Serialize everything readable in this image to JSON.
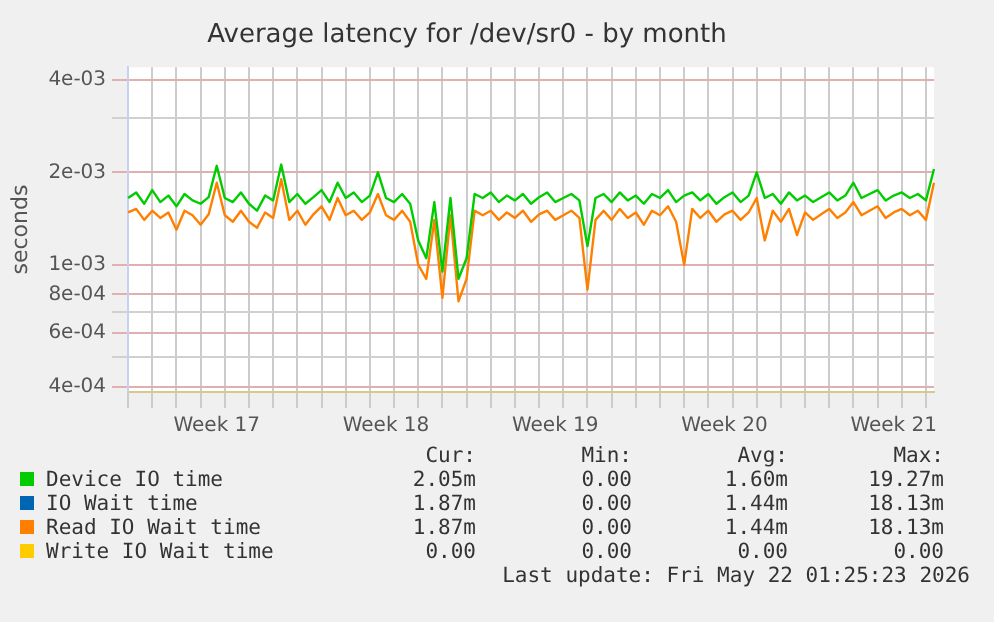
{
  "chart_data": {
    "type": "line",
    "title": "Average latency for /dev/sr0 - by month",
    "ylabel": "seconds",
    "log": "y",
    "grid": true,
    "legend": "bottom",
    "marker": "none",
    "line_style": "solid",
    "ylim": [
      0.000385,
      0.0044
    ],
    "yticks": [
      {
        "value": 0.0004,
        "label": "4e-04"
      },
      {
        "value": 0.0005,
        "label": null
      },
      {
        "value": 0.0006,
        "label": "6e-04"
      },
      {
        "value": 0.0007,
        "label": null
      },
      {
        "value": 0.0008,
        "label": "8e-04"
      },
      {
        "value": 0.001,
        "label": "1e-03"
      },
      {
        "value": 0.002,
        "label": "2e-03"
      },
      {
        "value": 0.003,
        "label": null
      },
      {
        "value": 0.004,
        "label": "4e-03"
      }
    ],
    "categories": [
      null,
      null,
      null,
      null,
      null,
      null,
      null,
      null,
      null,
      null,
      null,
      "Week 17",
      null,
      null,
      null,
      null,
      null,
      null,
      null,
      null,
      null,
      null,
      null,
      null,
      null,
      null,
      null,
      null,
      null,
      null,
      null,
      null,
      "Week 18",
      null,
      null,
      null,
      null,
      null,
      null,
      null,
      null,
      null,
      null,
      null,
      null,
      null,
      null,
      null,
      null,
      null,
      null,
      null,
      null,
      "Week 19",
      null,
      null,
      null,
      null,
      null,
      null,
      null,
      null,
      null,
      null,
      null,
      null,
      null,
      null,
      null,
      null,
      null,
      null,
      null,
      null,
      "Week 20",
      null,
      null,
      null,
      null,
      null,
      null,
      null,
      null,
      null,
      null,
      null,
      null,
      null,
      null,
      null,
      null,
      null,
      null,
      null,
      null,
      "Week 21",
      null,
      null,
      null,
      null,
      null
    ],
    "series": [
      {
        "name": "Device IO time",
        "color": "#00cc00",
        "values": [
          0.00165,
          0.00172,
          0.00158,
          0.00175,
          0.0016,
          0.00168,
          0.00155,
          0.0017,
          0.00162,
          0.00158,
          0.00166,
          0.0021,
          0.00165,
          0.0016,
          0.00172,
          0.00158,
          0.0015,
          0.00168,
          0.00162,
          0.00212,
          0.0016,
          0.0017,
          0.00158,
          0.00166,
          0.00175,
          0.0016,
          0.00185,
          0.00165,
          0.00172,
          0.0016,
          0.00168,
          0.002,
          0.00165,
          0.0016,
          0.0017,
          0.00158,
          0.0012,
          0.00105,
          0.0016,
          0.00095,
          0.00165,
          0.0009,
          0.00105,
          0.0017,
          0.00165,
          0.00172,
          0.0016,
          0.00168,
          0.00162,
          0.0017,
          0.00158,
          0.00166,
          0.00172,
          0.0016,
          0.00165,
          0.0017,
          0.00162,
          0.00115,
          0.00165,
          0.0017,
          0.0016,
          0.00172,
          0.00162,
          0.00168,
          0.00158,
          0.0017,
          0.00165,
          0.00175,
          0.0016,
          0.00168,
          0.00172,
          0.00162,
          0.0017,
          0.00158,
          0.00166,
          0.00172,
          0.0016,
          0.00168,
          0.002,
          0.00165,
          0.0017,
          0.00158,
          0.00172,
          0.00162,
          0.00168,
          0.0016,
          0.00166,
          0.00172,
          0.00162,
          0.00168,
          0.00185,
          0.00165,
          0.0017,
          0.00175,
          0.00162,
          0.00168,
          0.00172,
          0.00165,
          0.0017,
          0.00162,
          0.00205
        ]
      },
      {
        "name": "IO Wait time",
        "color": "#0066b3",
        "values": [
          null,
          null,
          null,
          null,
          null,
          null,
          null,
          null,
          null,
          null,
          null,
          null,
          null,
          null,
          null,
          null,
          null,
          null,
          null,
          null,
          null,
          null,
          null,
          null,
          null,
          null,
          null,
          null,
          null,
          null,
          null,
          null,
          null,
          null,
          null,
          null,
          null,
          null,
          null,
          null,
          null,
          null,
          null,
          null,
          null,
          null,
          null,
          null,
          null,
          null,
          null,
          null,
          null,
          null,
          null,
          null,
          null,
          null,
          null,
          null,
          null,
          null,
          null,
          null,
          null,
          null,
          null,
          null,
          null,
          null,
          null,
          null,
          null,
          null,
          null,
          null,
          null,
          null,
          null,
          null,
          null,
          null,
          null,
          null,
          null,
          null,
          null,
          null,
          null,
          null,
          null,
          null,
          null,
          null,
          null,
          null,
          null,
          null,
          null,
          null,
          null
        ]
      },
      {
        "name": "Read IO Wait time",
        "color": "#ff8000",
        "values": [
          0.00148,
          0.00152,
          0.0014,
          0.0015,
          0.00142,
          0.00148,
          0.0013,
          0.0015,
          0.00145,
          0.00135,
          0.00146,
          0.00185,
          0.00145,
          0.00138,
          0.0015,
          0.00138,
          0.00132,
          0.00148,
          0.00142,
          0.0019,
          0.0014,
          0.0015,
          0.00135,
          0.00146,
          0.00155,
          0.0014,
          0.00165,
          0.00145,
          0.0015,
          0.0014,
          0.00148,
          0.0017,
          0.00145,
          0.0014,
          0.0015,
          0.00138,
          0.001,
          0.0009,
          0.0014,
          0.00078,
          0.00145,
          0.00076,
          0.0009,
          0.0015,
          0.00145,
          0.0015,
          0.0014,
          0.00148,
          0.00142,
          0.0015,
          0.00138,
          0.00146,
          0.0015,
          0.0014,
          0.00145,
          0.0015,
          0.00142,
          0.00083,
          0.0014,
          0.0015,
          0.0014,
          0.00152,
          0.00142,
          0.00148,
          0.00135,
          0.0015,
          0.00145,
          0.00155,
          0.00138,
          0.001,
          0.00152,
          0.00142,
          0.0015,
          0.00138,
          0.00146,
          0.0015,
          0.0014,
          0.00148,
          0.00165,
          0.0012,
          0.0015,
          0.00138,
          0.00152,
          0.00125,
          0.00148,
          0.0014,
          0.00146,
          0.00152,
          0.00142,
          0.00148,
          0.0016,
          0.00145,
          0.0015,
          0.00155,
          0.00142,
          0.00148,
          0.00152,
          0.00145,
          0.0015,
          0.0014,
          0.00185
        ]
      },
      {
        "name": "Write IO Wait time",
        "color": "#ffcc00",
        "values": [
          null,
          null,
          null,
          null,
          null,
          null,
          null,
          null,
          null,
          null,
          null,
          null,
          null,
          null,
          null,
          null,
          null,
          null,
          null,
          null,
          null,
          null,
          null,
          null,
          null,
          null,
          null,
          null,
          null,
          null,
          null,
          null,
          null,
          null,
          null,
          null,
          null,
          null,
          null,
          null,
          null,
          null,
          null,
          null,
          null,
          null,
          null,
          null,
          null,
          null,
          null,
          null,
          null,
          null,
          null,
          null,
          null,
          null,
          null,
          null,
          null,
          null,
          null,
          null,
          null,
          null,
          null,
          null,
          null,
          null,
          null,
          null,
          null,
          null,
          null,
          null,
          null,
          null,
          null,
          null,
          null,
          null,
          null,
          null,
          null,
          null,
          null,
          null,
          null,
          null,
          null,
          null,
          null,
          null,
          null,
          null,
          null,
          null,
          null,
          null,
          null
        ]
      }
    ],
    "annotations": [
      "Cur:",
      "Min:",
      "Avg:",
      "Max:",
      "2.05m",
      "0.00",
      "1.60m",
      "19.27m",
      "1.87m",
      "0.00",
      "1.44m",
      "18.13m",
      "1.87m",
      "0.00",
      "1.44m",
      "18.13m",
      "0.00",
      "0.00",
      "0.00",
      "0.00",
      "Last update: Fri May 22 01:25:23 2026"
    ]
  }
}
